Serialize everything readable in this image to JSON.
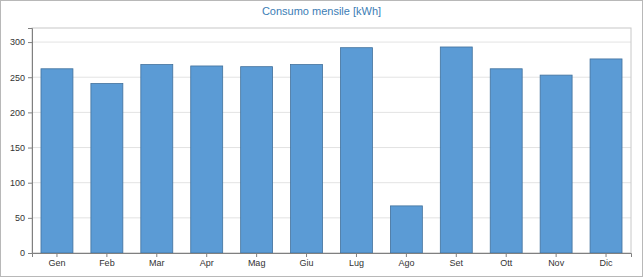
{
  "chart_data": {
    "type": "bar",
    "title": "Consumo mensile [kWh]",
    "categories": [
      "Gen",
      "Feb",
      "Mar",
      "Apr",
      "Mag",
      "Giu",
      "Lug",
      "Ago",
      "Set",
      "Ott",
      "Nov",
      "Dic"
    ],
    "values": [
      262,
      241,
      268,
      266,
      265,
      268,
      292,
      67,
      293,
      262,
      253,
      276
    ],
    "color": "#5b9bd5",
    "ylim": [
      0,
      320
    ],
    "yticks": [
      0,
      50,
      100,
      150,
      200,
      250,
      300
    ],
    "grid": true
  }
}
